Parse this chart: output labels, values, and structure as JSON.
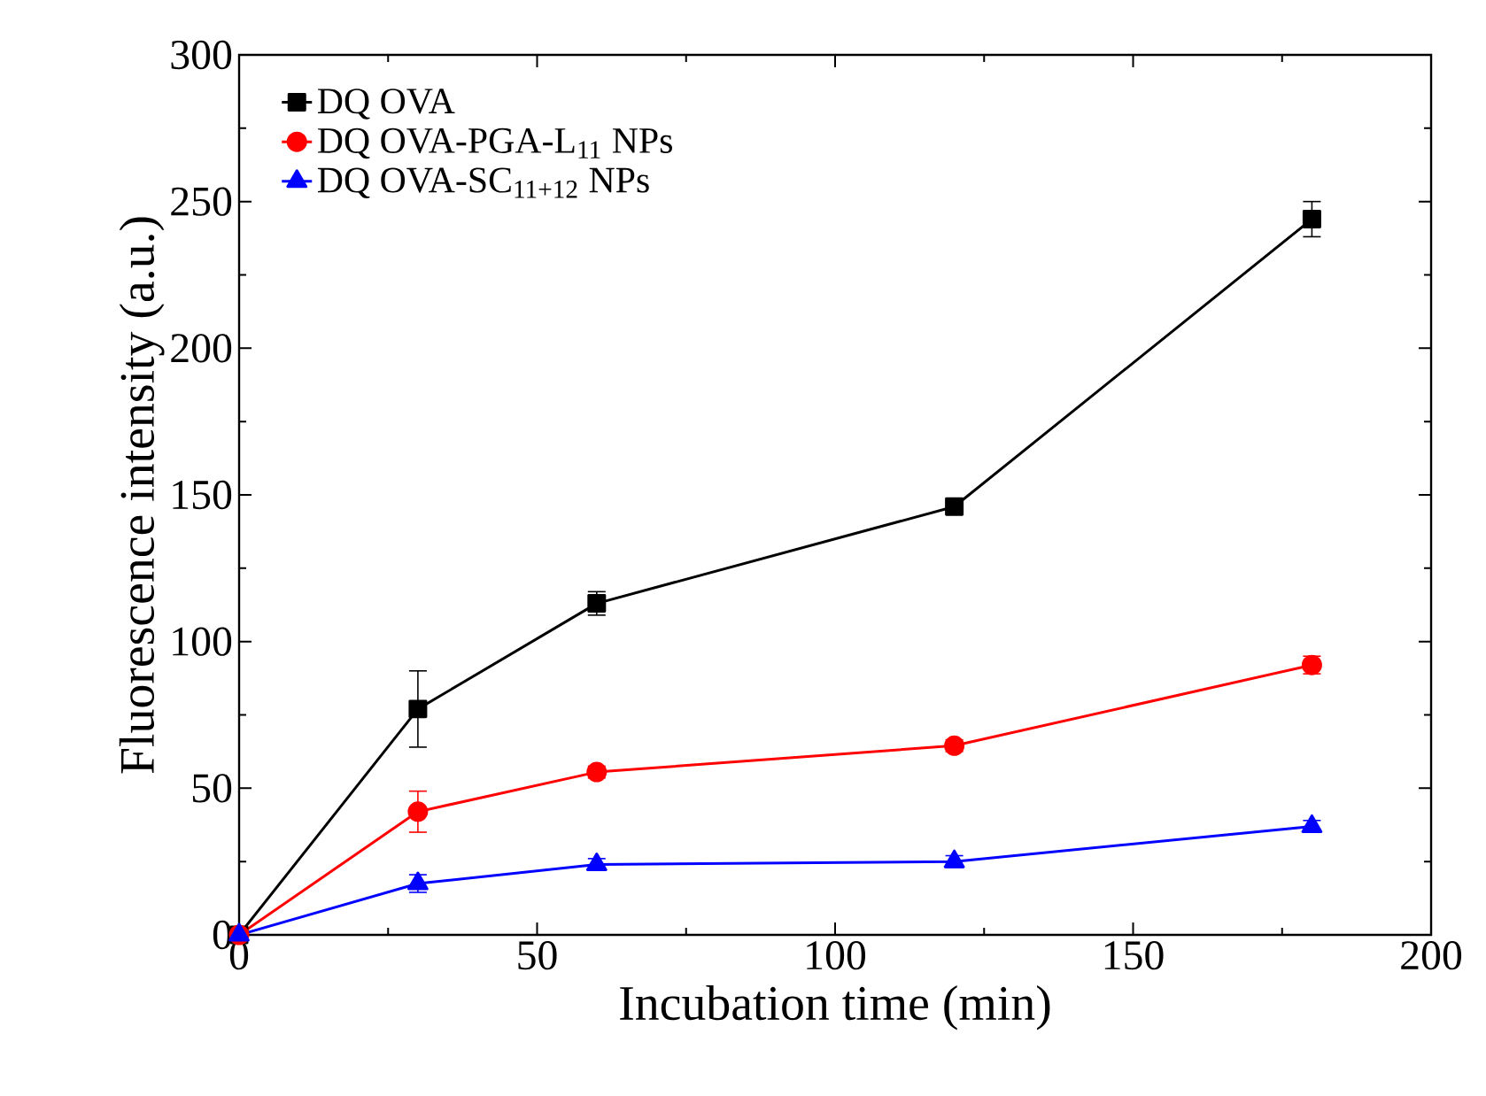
{
  "chart_data": {
    "type": "line",
    "xlabel": "Incubation time (min)",
    "ylabel": "Fluorescence intensity (a.u.)",
    "x": [
      0,
      30,
      60,
      120,
      180
    ],
    "xlim": [
      0,
      200
    ],
    "xticks": [
      0,
      50,
      100,
      150,
      200
    ],
    "ylim": [
      0,
      300
    ],
    "yticks": [
      0,
      50,
      100,
      150,
      200,
      250,
      300
    ],
    "legend": "top left",
    "grid": false,
    "line_style": "solid",
    "series": [
      {
        "name": "DQ OVA",
        "color": "#000000",
        "marker": "square",
        "values": [
          0,
          77,
          113,
          146,
          244
        ],
        "errors": [
          0,
          13,
          4,
          2,
          6
        ]
      },
      {
        "name": "DQ OVA-PGA-L$_{11}$ NPs",
        "color": "#ff0000",
        "marker": "circle",
        "values": [
          0,
          42,
          55.5,
          64.5,
          92
        ],
        "errors": [
          0,
          7,
          2,
          2,
          3
        ]
      },
      {
        "name": "DQ OVA-SC$_{11+12}$ NPs",
        "color": "#0000ff",
        "marker": "triangle",
        "values": [
          0,
          17.5,
          24,
          25,
          37
        ],
        "errors": [
          0,
          3,
          2,
          2,
          2
        ]
      }
    ]
  }
}
